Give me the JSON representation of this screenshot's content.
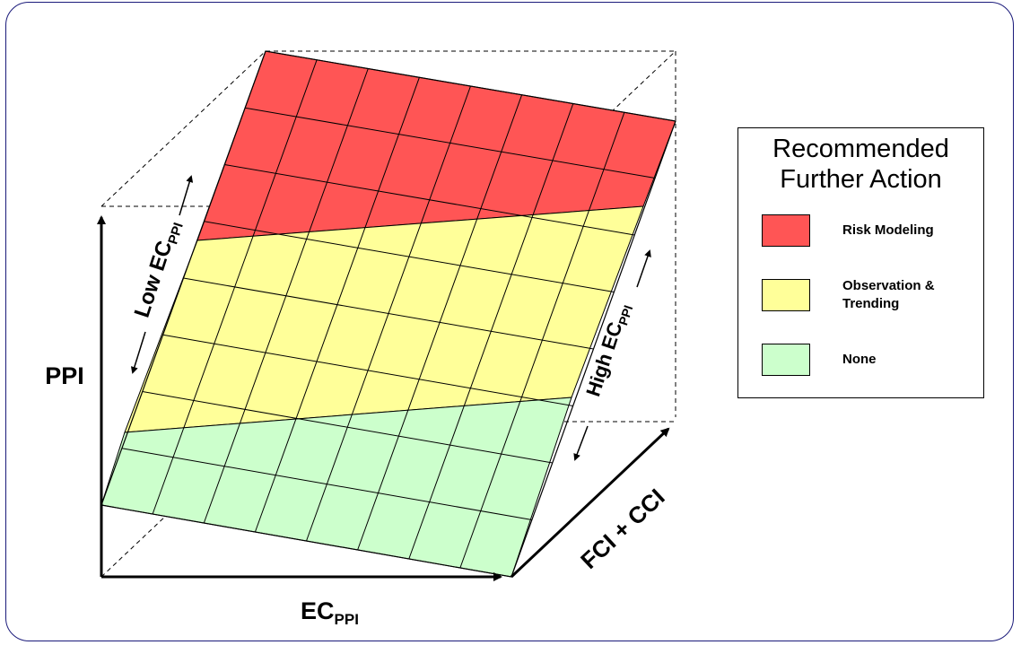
{
  "axes": {
    "y_label": "PPI",
    "x_label_main": "EC",
    "x_label_sub": "PPI",
    "z_label": "FCI + CCI"
  },
  "annotations": {
    "low_main": "Low EC",
    "low_sub": "PPI",
    "high_main": "High EC",
    "high_sub": "PPI"
  },
  "legend": {
    "title": "Recommended\nFurther Action",
    "items": [
      {
        "label": "Risk Modeling",
        "color": "#ff5555"
      },
      {
        "label": "Observation &\nTrending",
        "color": "#ffff99"
      },
      {
        "label": "None",
        "color": "#ccffcc"
      }
    ]
  },
  "colors": {
    "risk": "#ff5555",
    "observation": "#ffff99",
    "none": "#ccffcc",
    "frame_border": "#1a1a7a"
  }
}
